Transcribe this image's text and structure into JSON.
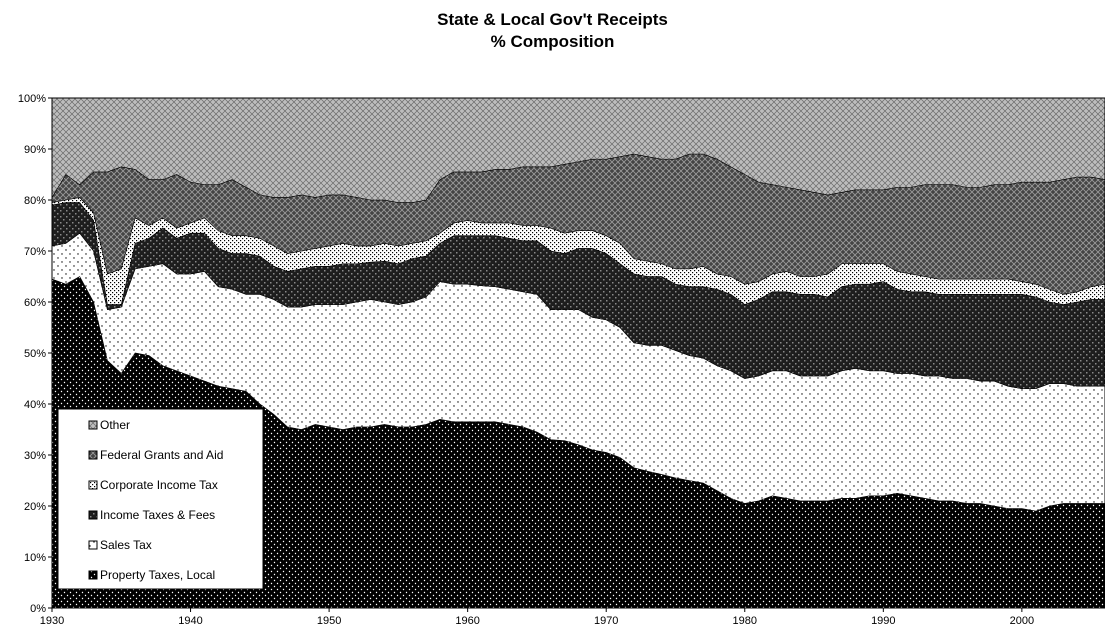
{
  "chart_data": {
    "type": "area",
    "stacked": true,
    "normalized": "100%",
    "title": "State & Local Gov't Receipts",
    "subtitle": "% Composition",
    "xlabel": "",
    "ylabel": "",
    "xlim": [
      1930,
      2006
    ],
    "ylim": [
      0,
      100
    ],
    "x_ticks": [
      "1930",
      "1940",
      "1950",
      "1960",
      "1970",
      "1980",
      "1990",
      "2000"
    ],
    "y_ticks": [
      "0%",
      "10%",
      "20%",
      "30%",
      "40%",
      "50%",
      "60%",
      "70%",
      "80%",
      "90%",
      "100%"
    ],
    "grid": false,
    "legend_position": "bottom-left",
    "legend_order": [
      "Other",
      "Federal Grants and Aid",
      "Corporate Income Tax",
      "Income Taxes & Fees",
      "Sales Tax",
      "Property Taxes, Local"
    ],
    "x": [
      1930,
      1931,
      1932,
      1933,
      1934,
      1935,
      1936,
      1937,
      1938,
      1939,
      1940,
      1941,
      1942,
      1943,
      1944,
      1945,
      1946,
      1947,
      1948,
      1949,
      1950,
      1951,
      1952,
      1953,
      1954,
      1955,
      1956,
      1957,
      1958,
      1959,
      1960,
      1961,
      1962,
      1963,
      1964,
      1965,
      1966,
      1967,
      1968,
      1969,
      1970,
      1971,
      1972,
      1973,
      1974,
      1975,
      1976,
      1977,
      1978,
      1979,
      1980,
      1981,
      1982,
      1983,
      1984,
      1985,
      1986,
      1987,
      1988,
      1989,
      1990,
      1991,
      1992,
      1993,
      1994,
      1995,
      1996,
      1997,
      1998,
      1999,
      2000,
      2001,
      2002,
      2003,
      2004,
      2005,
      2006
    ],
    "cumulative": {
      "Property Taxes, Local": [
        64.5,
        63.5,
        65.0,
        60.0,
        48.5,
        46.0,
        50.0,
        49.5,
        47.5,
        46.5,
        45.5,
        44.5,
        43.5,
        43.0,
        42.5,
        40.0,
        38.0,
        35.5,
        35.0,
        36.0,
        35.5,
        35.0,
        35.5,
        35.5,
        36.0,
        35.5,
        35.5,
        36.0,
        37.0,
        36.5,
        36.5,
        36.5,
        36.5,
        36.0,
        35.5,
        34.5,
        33.0,
        32.8,
        32.0,
        31.0,
        30.5,
        29.5,
        27.5,
        26.8,
        26.2,
        25.5,
        25.0,
        24.5,
        23.0,
        21.5,
        20.5,
        21.0,
        22.0,
        21.5,
        21.0,
        21.0,
        21.0,
        21.5,
        21.5,
        22.0,
        22.0,
        22.5,
        22.0,
        21.5,
        21.0,
        21.0,
        20.5,
        20.5,
        20.0,
        19.5,
        19.5,
        19.0,
        20.0,
        20.5,
        20.5,
        20.5,
        20.5
      ],
      "Sales Tax": [
        71.0,
        71.5,
        73.5,
        70.0,
        58.5,
        59.0,
        66.5,
        67.0,
        67.5,
        65.5,
        65.5,
        66.0,
        63.0,
        62.5,
        61.5,
        61.5,
        60.5,
        59.0,
        59.0,
        59.5,
        59.5,
        59.5,
        60.0,
        60.5,
        60.0,
        59.5,
        60.0,
        61.0,
        64.0,
        63.5,
        63.5,
        63.2,
        63.0,
        62.5,
        62.0,
        61.5,
        58.5,
        58.5,
        58.5,
        57.0,
        56.5,
        55.0,
        52.0,
        51.5,
        51.5,
        50.5,
        49.5,
        49.0,
        47.5,
        46.5,
        45.0,
        45.5,
        46.5,
        46.5,
        45.5,
        45.5,
        45.5,
        46.5,
        47.0,
        46.5,
        46.5,
        46.0,
        46.0,
        45.5,
        45.5,
        45.0,
        45.0,
        44.5,
        44.5,
        43.5,
        43.0,
        43.0,
        44.0,
        44.0,
        43.5,
        43.5,
        43.5
      ],
      "Income Taxes & Fees": [
        79.0,
        79.5,
        79.5,
        76.0,
        59.5,
        59.5,
        71.5,
        72.5,
        74.5,
        72.5,
        73.5,
        73.5,
        70.5,
        69.5,
        69.5,
        69.0,
        67.0,
        66.0,
        66.5,
        67.0,
        67.0,
        67.5,
        67.5,
        67.8,
        68.0,
        67.5,
        68.5,
        69.0,
        71.5,
        73.0,
        73.0,
        73.0,
        73.0,
        72.5,
        72.0,
        72.0,
        70.0,
        69.5,
        70.5,
        70.5,
        69.5,
        67.5,
        65.5,
        65.0,
        65.0,
        63.5,
        63.0,
        63.0,
        62.5,
        61.5,
        59.5,
        60.5,
        62.0,
        62.0,
        61.5,
        61.5,
        61.0,
        63.0,
        63.5,
        63.5,
        64.0,
        62.5,
        62.0,
        62.0,
        61.5,
        61.5,
        61.5,
        61.5,
        61.5,
        61.5,
        61.5,
        61.0,
        60.0,
        59.5,
        60.0,
        60.5,
        60.5
      ],
      "Corporate Income Tax": [
        79.5,
        80.0,
        80.5,
        77.5,
        65.5,
        66.5,
        76.5,
        75.0,
        76.5,
        74.5,
        75.5,
        76.5,
        74.0,
        73.0,
        73.0,
        72.5,
        71.0,
        69.5,
        70.0,
        70.5,
        71.0,
        71.5,
        71.0,
        71.0,
        71.5,
        71.0,
        71.5,
        72.0,
        73.5,
        75.5,
        76.0,
        75.5,
        75.5,
        75.5,
        75.0,
        75.0,
        74.5,
        73.5,
        74.0,
        74.0,
        73.0,
        71.5,
        68.5,
        68.0,
        67.5,
        66.5,
        66.5,
        67.0,
        65.5,
        65.0,
        63.5,
        64.0,
        65.5,
        66.0,
        65.0,
        65.0,
        65.5,
        67.5,
        67.5,
        67.5,
        67.5,
        66.0,
        65.5,
        65.0,
        64.5,
        64.5,
        64.5,
        64.5,
        64.5,
        64.5,
        64.0,
        63.5,
        62.5,
        61.5,
        62.0,
        63.0,
        63.5
      ],
      "Federal Grants and Aid": [
        80.5,
        85.0,
        83.0,
        85.5,
        85.5,
        86.5,
        86.0,
        84.0,
        84.0,
        85.0,
        83.5,
        83.0,
        83.0,
        84.0,
        82.5,
        81.0,
        80.5,
        80.5,
        81.0,
        80.5,
        81.0,
        81.0,
        80.5,
        80.0,
        80.0,
        79.5,
        79.5,
        80.0,
        84.0,
        85.5,
        85.5,
        85.5,
        86.0,
        86.0,
        86.5,
        86.5,
        86.5,
        87.0,
        87.5,
        88.0,
        88.0,
        88.5,
        89.0,
        88.5,
        88.0,
        88.0,
        89.0,
        89.0,
        88.0,
        86.5,
        85.0,
        83.5,
        83.0,
        82.5,
        82.0,
        81.5,
        81.0,
        81.5,
        82.0,
        82.0,
        82.0,
        82.5,
        82.5,
        83.0,
        83.0,
        83.0,
        82.5,
        82.5,
        83.0,
        83.0,
        83.5,
        83.5,
        83.5,
        84.0,
        84.5,
        84.5,
        84.0
      ],
      "Other": [
        100,
        100,
        100,
        100,
        100,
        100,
        100,
        100,
        100,
        100,
        100,
        100,
        100,
        100,
        100,
        100,
        100,
        100,
        100,
        100,
        100,
        100,
        100,
        100,
        100,
        100,
        100,
        100,
        100,
        100,
        100,
        100,
        100,
        100,
        100,
        100,
        100,
        100,
        100,
        100,
        100,
        100,
        100,
        100,
        100,
        100,
        100,
        100,
        100,
        100,
        100,
        100,
        100,
        100,
        100,
        100,
        100,
        100,
        100,
        100,
        100,
        100,
        100,
        100,
        100,
        100,
        100,
        100,
        100,
        100,
        100,
        100,
        100,
        100,
        100,
        100,
        100
      ]
    },
    "series": [
      {
        "name": "Property Taxes, Local",
        "pattern": "black-dots"
      },
      {
        "name": "Sales Tax",
        "pattern": "white-dots"
      },
      {
        "name": "Income Taxes & Fees",
        "pattern": "dark-check"
      },
      {
        "name": "Corporate Income Tax",
        "pattern": "light-dots"
      },
      {
        "name": "Federal Grants and Aid",
        "pattern": "dark-weave"
      },
      {
        "name": "Other",
        "pattern": "light-weave"
      }
    ]
  }
}
